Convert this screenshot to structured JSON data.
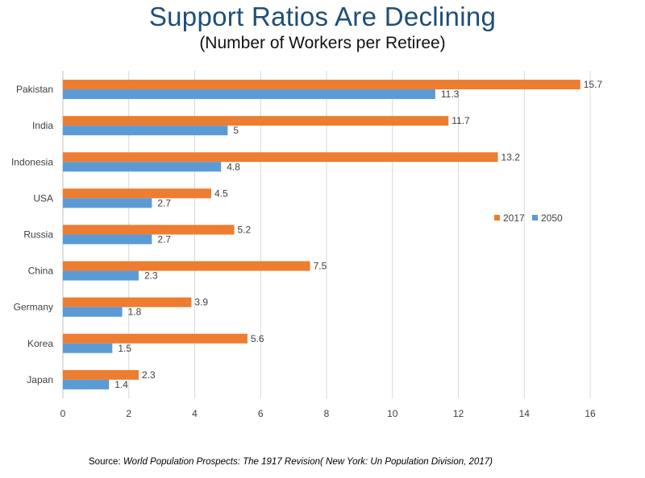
{
  "title": "Support Ratios Are Declining",
  "subtitle": "(Number of Workers per Retiree)",
  "source": {
    "prefix": "Source: ",
    "italic": "World Population Prospects: The 1917 Revision( New York: Un Population Division, 2017)"
  },
  "chart_data": {
    "type": "bar",
    "orientation": "horizontal",
    "title": "Support Ratios Are Declining",
    "subtitle": "(Number of Workers per Retiree)",
    "categories": [
      "Pakistan",
      "India",
      "Indonesia",
      "USA",
      "Russia",
      "China",
      "Germany",
      "Korea",
      "Japan"
    ],
    "series": [
      {
        "name": "2017",
        "color": "#ED7D31",
        "values": [
          15.7,
          11.7,
          13.2,
          4.5,
          5.2,
          7.5,
          3.9,
          5.6,
          2.3
        ]
      },
      {
        "name": "2050",
        "color": "#5B9BD5",
        "values": [
          11.3,
          5,
          4.8,
          2.7,
          2.7,
          2.3,
          1.8,
          1.5,
          1.4
        ]
      }
    ],
    "xlim": [
      0,
      16
    ],
    "xticks": [
      0,
      2,
      4,
      6,
      8,
      10,
      12,
      14,
      16
    ],
    "grid": "vertical",
    "legend_position": "right",
    "data_labels": true
  }
}
